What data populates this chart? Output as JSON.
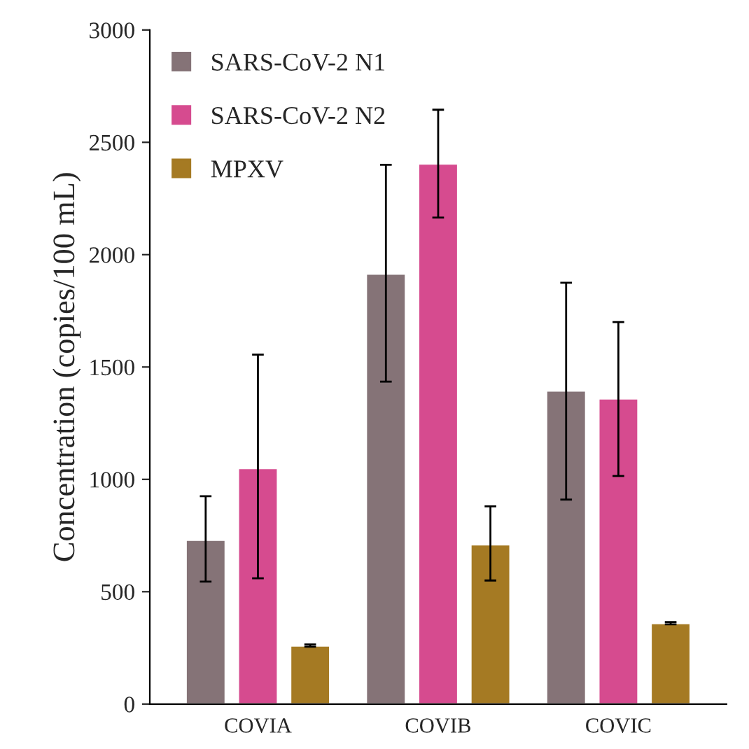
{
  "chart_data": {
    "type": "bar",
    "ylabel": "Concentration (copies/100 mL)",
    "categories": [
      "COVIA",
      "COVIB",
      "COVIC"
    ],
    "series": [
      {
        "name": "SARS-CoV-2 N1",
        "color": "#857377",
        "values": [
          730,
          1915,
          1395
        ],
        "errors": [
          [
            545,
            925
          ],
          [
            1435,
            2400
          ],
          [
            910,
            1875
          ]
        ]
      },
      {
        "name": "SARS-CoV-2 N2",
        "color": "#d64b8f",
        "values": [
          1050,
          2405,
          1360
        ],
        "errors": [
          [
            560,
            1555
          ],
          [
            2165,
            2645
          ],
          [
            1015,
            1700
          ]
        ]
      },
      {
        "name": "MPXV",
        "color": "#a57a23",
        "values": [
          260,
          710,
          360
        ],
        "errors": [
          [
            255,
            265
          ],
          [
            550,
            880
          ],
          [
            355,
            365
          ]
        ]
      }
    ],
    "ylim": [
      0,
      3000
    ],
    "yticks": [
      0,
      500,
      1000,
      1500,
      2000,
      2500,
      3000
    ],
    "grid": false,
    "legend": "top left"
  }
}
